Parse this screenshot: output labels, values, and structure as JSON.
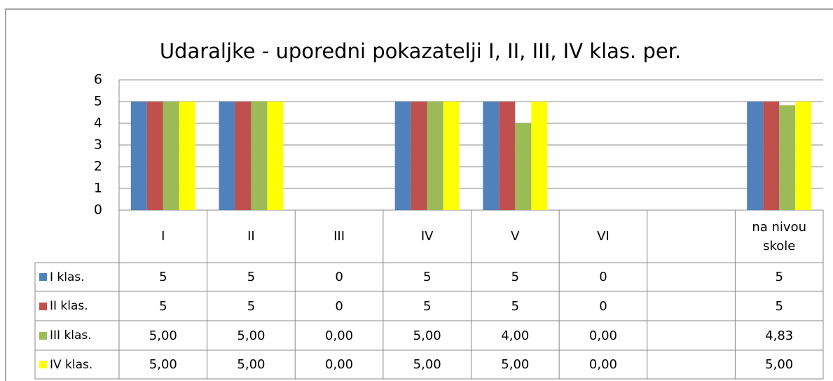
{
  "chart_data": {
    "type": "bar",
    "title": "Udaraljke - uporedni pokazatelji I, II, III, IV klas. per.",
    "categories": [
      "I",
      "II",
      "III",
      "IV",
      "V",
      "VI",
      null,
      "na nivou skole"
    ],
    "series": [
      {
        "name": "I klas.",
        "color": "#4f81bd",
        "values": [
          5,
          5,
          0,
          5,
          5,
          0,
          null,
          5
        ]
      },
      {
        "name": "II klas.",
        "color": "#c0504d",
        "values": [
          5,
          5,
          0,
          5,
          5,
          0,
          null,
          5
        ]
      },
      {
        "name": "III klas.",
        "color": "#9bbb59",
        "values": [
          5,
          5,
          0,
          5,
          4,
          0,
          null,
          4.83
        ],
        "value_labels": [
          "5,00",
          "5,00",
          "0,00",
          "5,00",
          "4,00",
          "0,00",
          null,
          "4,83"
        ]
      },
      {
        "name": "IV klas.",
        "color": "#ffff00",
        "values": [
          5,
          5,
          0,
          5,
          5,
          0,
          null,
          5
        ],
        "value_labels": [
          "5,00",
          "5,00",
          "0,00",
          "5,00",
          "5,00",
          "0,00",
          null,
          "5,00"
        ]
      }
    ],
    "ylim": [
      0,
      6
    ],
    "yticks": [
      0,
      1,
      2,
      3,
      4,
      5,
      6
    ],
    "grid": true
  }
}
